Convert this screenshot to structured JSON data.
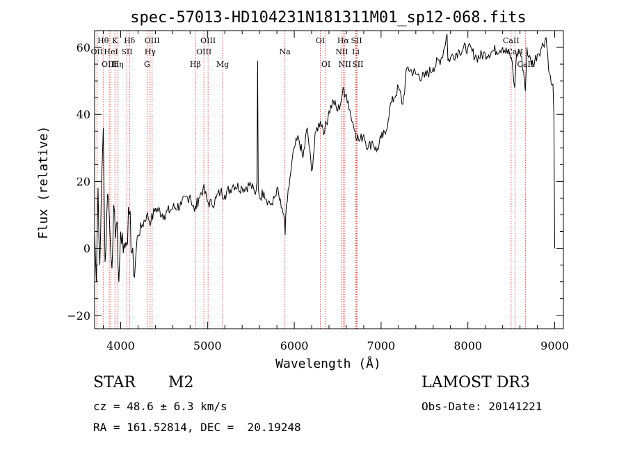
{
  "chart_data": {
    "type": "line",
    "title": "spec-57013-HD104231N181311M01_sp12-068.fits",
    "xlabel": "Wavelength (Å)",
    "ylabel": "Flux (relative)",
    "xlim": [
      3700,
      9100
    ],
    "ylim": [
      -24,
      65
    ],
    "xticks": [
      4000,
      5000,
      6000,
      7000,
      8000,
      9000
    ],
    "xtick_labels": [
      "4000",
      "5000",
      "6000",
      "7000",
      "8000",
      "9000"
    ],
    "yticks": [
      -20,
      0,
      20,
      40,
      60
    ],
    "ytick_labels": [
      "−20",
      "0",
      "20",
      "40",
      "60"
    ],
    "series": [
      {
        "name": "flux",
        "x": [
          3700,
          3720,
          3740,
          3760,
          3780,
          3800,
          3820,
          3840,
          3860,
          3880,
          3900,
          3920,
          3940,
          3960,
          3980,
          4000,
          4050,
          4100,
          4150,
          4200,
          4250,
          4300,
          4350,
          4400,
          4500,
          4600,
          4700,
          4800,
          4850,
          4900,
          4950,
          5000,
          5050,
          5100,
          5150,
          5200,
          5300,
          5400,
          5500,
          5550,
          5570,
          5578,
          5585,
          5600,
          5650,
          5700,
          5750,
          5800,
          5850,
          5880,
          5890,
          5895,
          5900,
          5920,
          5950,
          6000,
          6050,
          6100,
          6150,
          6200,
          6250,
          6300,
          6350,
          6400,
          6450,
          6500,
          6540,
          6563,
          6580,
          6600,
          6620,
          6650,
          6700,
          6750,
          6800,
          6850,
          6900,
          6950,
          7000,
          7050,
          7100,
          7150,
          7200,
          7250,
          7300,
          7400,
          7500,
          7600,
          7700,
          7760,
          7770,
          7800,
          7900,
          8000,
          8100,
          8200,
          8300,
          8400,
          8500,
          8540,
          8560,
          8600,
          8640,
          8662,
          8680,
          8700,
          8750,
          8800,
          8850,
          8900,
          8940,
          8960,
          8980,
          8990,
          9000
        ],
        "y": [
          5,
          -10,
          18,
          -5,
          20,
          36,
          -4,
          10,
          15,
          2,
          -6,
          13,
          3,
          8,
          -10,
          5,
          0,
          10,
          -8,
          4,
          7,
          10,
          8,
          12,
          10,
          12,
          13,
          16,
          11,
          15,
          18,
          14,
          13,
          15,
          17,
          16,
          19,
          18,
          19,
          16,
          20,
          56,
          18,
          15,
          17,
          14,
          13,
          18,
          12,
          10,
          7,
          4,
          9,
          14,
          21,
          30,
          33,
          27,
          36,
          23,
          35,
          38,
          35,
          41,
          44,
          41,
          44,
          48,
          45,
          46,
          44,
          40,
          35,
          32,
          34,
          30,
          32,
          29,
          33,
          34,
          42,
          45,
          48,
          43,
          54,
          52,
          51,
          54,
          57,
          64,
          56,
          57,
          59,
          60,
          57,
          58,
          59,
          60,
          57,
          48,
          58,
          59,
          53,
          47,
          60,
          57,
          55,
          58,
          60,
          63,
          52,
          49,
          49,
          40,
          0
        ]
      }
    ],
    "lines": [
      {
        "label": "Hθ",
        "wavelength": 3798,
        "row": 0
      },
      {
        "label": "K",
        "wavelength": 3934,
        "row": 0
      },
      {
        "label": "Hδ",
        "wavelength": 4102,
        "row": 0
      },
      {
        "label": "OIII",
        "wavelength": 4363,
        "row": 0
      },
      {
        "label": "OIII",
        "wavelength": 5007,
        "row": 0
      },
      {
        "label": "OI",
        "wavelength": 6300,
        "row": 0
      },
      {
        "label": "Hα",
        "wavelength": 6563,
        "row": 0
      },
      {
        "label": "SII",
        "wavelength": 6717,
        "row": 0
      },
      {
        "label": "CaII",
        "wavelength": 8498,
        "row": 0
      },
      {
        "label": "OII",
        "wavelength": 3727,
        "row": 1
      },
      {
        "label": "HeI",
        "wavelength": 3889,
        "row": 1
      },
      {
        "label": "SII",
        "wavelength": 4072,
        "row": 1
      },
      {
        "label": "Hγ",
        "wavelength": 4340,
        "row": 1
      },
      {
        "label": "OIII",
        "wavelength": 4959,
        "row": 1
      },
      {
        "label": "Na",
        "wavelength": 5893,
        "row": 1
      },
      {
        "label": "NII",
        "wavelength": 6548,
        "row": 1
      },
      {
        "label": "Li",
        "wavelength": 6708,
        "row": 1
      },
      {
        "label": "CaII",
        "wavelength": 8542,
        "row": 1
      },
      {
        "label": "OIII",
        "wavelength": 3869,
        "row": 2
      },
      {
        "label": "Hη",
        "wavelength": 3970,
        "row": 2
      },
      {
        "label": "G",
        "wavelength": 4304,
        "row": 2
      },
      {
        "label": "Hβ",
        "wavelength": 4861,
        "row": 2
      },
      {
        "label": "Mg",
        "wavelength": 5175,
        "row": 2
      },
      {
        "label": "OI",
        "wavelength": 6364,
        "row": 2
      },
      {
        "label": "NII",
        "wavelength": 6583,
        "row": 2
      },
      {
        "label": "SII",
        "wavelength": 6731,
        "row": 2
      },
      {
        "label": "CaII",
        "wavelength": 8662,
        "row": 2
      }
    ]
  },
  "info": {
    "object_type": "STAR",
    "subclass": "M2",
    "survey": "LAMOST DR3",
    "cz": "cz = 48.6 ± 6.3 km/s",
    "obs_date": "Obs-Date: 20141221",
    "radec": "RA = 161.52814, DEC =  20.19248"
  },
  "colors": {
    "line_marker": "#cc2222",
    "spectrum": "#000000"
  }
}
